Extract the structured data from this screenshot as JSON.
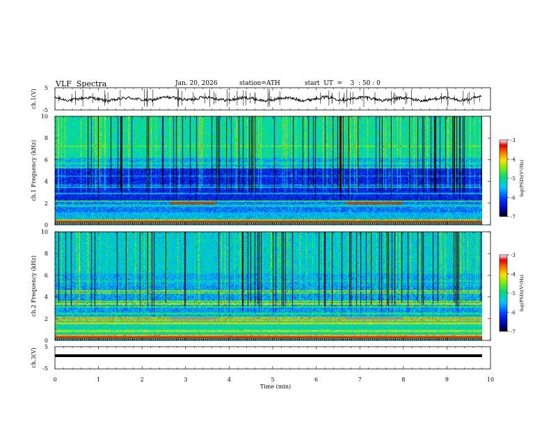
{
  "header": {
    "title": "VLF  Spectra",
    "date": "Jan. 20, 2026",
    "station": "station=ATH",
    "start": "start  UT  =    3  : 50 : 0"
  },
  "chart_data": [
    {
      "type": "line",
      "name": "ch1-waveform",
      "ylabel": "ch.1(V)",
      "ylim": [
        -5,
        5
      ],
      "yticks": [
        "5",
        "-5"
      ],
      "xlim": [
        0,
        10
      ]
    },
    {
      "type": "heatmap",
      "name": "ch1-spectrogram",
      "ylabel": "ch.1  Frequency (kHz)",
      "ylim": [
        0,
        10
      ],
      "yticks": [
        "0",
        "2",
        "4",
        "6",
        "8",
        "10"
      ],
      "xlim": [
        0,
        10
      ],
      "data_extent_min": 9.8,
      "colorbar": {
        "label": "log(PSD)(V²/Hz)",
        "range": [
          -7,
          -3
        ],
        "ticks": [
          "-3",
          "-4",
          "-5",
          "-6",
          "-7"
        ]
      }
    },
    {
      "type": "heatmap",
      "name": "ch2-spectrogram",
      "ylabel": "ch.2  Frequency (kHz)",
      "ylim": [
        0,
        10
      ],
      "yticks": [
        "0",
        "2",
        "4",
        "6",
        "8",
        "10"
      ],
      "xlim": [
        0,
        10
      ],
      "data_extent_min": 9.8,
      "colorbar": {
        "label": "log(PSD)(V²/Hz)",
        "range": [
          -7,
          -3
        ],
        "ticks": [
          "-3",
          "-4",
          "-5",
          "-6",
          "-7"
        ]
      }
    },
    {
      "type": "line",
      "name": "ch3-waveform",
      "ylabel": "ch.3(V)",
      "ylim": [
        -5,
        5
      ],
      "yticks": [
        "5",
        "-5"
      ],
      "xlim": [
        0,
        10
      ],
      "xlabel": "Time  (min)",
      "xticks": [
        "0",
        "1",
        "2",
        "3",
        "4",
        "5",
        "6",
        "7",
        "8",
        "9",
        "10"
      ]
    }
  ]
}
